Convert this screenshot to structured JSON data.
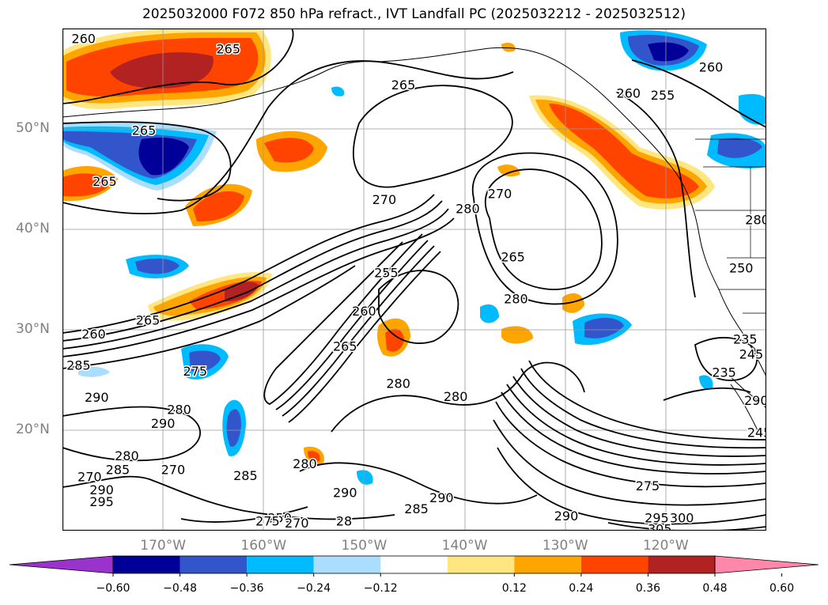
{
  "title": "2025032000 F072 850 hPa refract., IVT Landfall PC (2025032212 - 2025032512)",
  "lat_axis": [
    {
      "label": "50°N",
      "value": 50
    },
    {
      "label": "40°N",
      "value": 40
    },
    {
      "label": "30°N",
      "value": 30
    },
    {
      "label": "20°N",
      "value": 20
    }
  ],
  "lon_axis": [
    {
      "label": "170°W",
      "value": -170
    },
    {
      "label": "160°W",
      "value": -160
    },
    {
      "label": "150°W",
      "value": -150
    },
    {
      "label": "140°W",
      "value": -140
    },
    {
      "label": "130°W",
      "value": -130
    },
    {
      "label": "120°W",
      "value": -120
    }
  ],
  "map_extent": {
    "lon": [
      -180,
      -110
    ],
    "lat": [
      10,
      60
    ]
  },
  "colorbar": {
    "colors": [
      "#9933cc",
      "#000099",
      "#3355cc",
      "#00bbff",
      "#aaddff",
      "#ffffff",
      "#ffe680",
      "#ffa500",
      "#ff4400",
      "#b22222",
      "#ff88aa"
    ],
    "tick_labels": [
      "−0.60",
      "−0.48",
      "−0.36",
      "−0.24",
      "−0.12",
      "0.12",
      "0.24",
      "0.36",
      "0.48",
      "0.60"
    ]
  },
  "contour_labels": [
    {
      "text": "260",
      "lon": -177.9,
      "lat": 59.0
    },
    {
      "text": "265",
      "lon": -163.5,
      "lat": 58.0
    },
    {
      "text": "265",
      "lon": -146.1,
      "lat": 54.4
    },
    {
      "text": "265",
      "lon": -171.9,
      "lat": 49.9
    },
    {
      "text": "265",
      "lon": -175.8,
      "lat": 44.8
    },
    {
      "text": "260",
      "lon": -123.7,
      "lat": 53.6
    },
    {
      "text": "255",
      "lon": -120.3,
      "lat": 53.4
    },
    {
      "text": "260",
      "lon": -115.5,
      "lat": 56.2
    },
    {
      "text": "270",
      "lon": -148.0,
      "lat": 43.0
    },
    {
      "text": "280",
      "lon": -139.7,
      "lat": 42.1
    },
    {
      "text": "270",
      "lon": -136.5,
      "lat": 43.6
    },
    {
      "text": "265",
      "lon": -135.2,
      "lat": 37.3
    },
    {
      "text": "280",
      "lon": -134.9,
      "lat": 33.1
    },
    {
      "text": "255",
      "lon": -147.8,
      "lat": 35.7
    },
    {
      "text": "260",
      "lon": -150.0,
      "lat": 31.9
    },
    {
      "text": "265",
      "lon": -171.5,
      "lat": 31.0
    },
    {
      "text": "260",
      "lon": -176.9,
      "lat": 29.6
    },
    {
      "text": "285",
      "lon": -178.4,
      "lat": 26.5
    },
    {
      "text": "275",
      "lon": -166.8,
      "lat": 25.9
    },
    {
      "text": "265",
      "lon": -151.9,
      "lat": 28.4
    },
    {
      "text": "280",
      "lon": -146.6,
      "lat": 24.7
    },
    {
      "text": "280",
      "lon": -140.9,
      "lat": 23.4
    },
    {
      "text": "290",
      "lon": -176.6,
      "lat": 23.3
    },
    {
      "text": "290",
      "lon": -170.0,
      "lat": 20.7
    },
    {
      "text": "280",
      "lon": -168.4,
      "lat": 22.1
    },
    {
      "text": "270",
      "lon": -169.0,
      "lat": 16.1
    },
    {
      "text": "285",
      "lon": -161.8,
      "lat": 15.5
    },
    {
      "text": "280",
      "lon": -155.9,
      "lat": 16.7
    },
    {
      "text": "290",
      "lon": -151.9,
      "lat": 13.8
    },
    {
      "text": "290",
      "lon": -142.3,
      "lat": 13.3
    },
    {
      "text": "285",
      "lon": -144.8,
      "lat": 12.2
    },
    {
      "text": "290",
      "lon": -129.9,
      "lat": 11.5
    },
    {
      "text": "275",
      "lon": -121.8,
      "lat": 14.5
    },
    {
      "text": "295",
      "lon": -120.9,
      "lat": 11.3
    },
    {
      "text": "300",
      "lon": -118.4,
      "lat": 11.3
    },
    {
      "text": "305",
      "lon": -120.6,
      "lat": 10.2
    },
    {
      "text": "245",
      "lon": -111.5,
      "lat": 27.6
    },
    {
      "text": "250",
      "lon": -112.5,
      "lat": 36.2
    },
    {
      "text": "235",
      "lon": -114.2,
      "lat": 25.8
    },
    {
      "text": "235",
      "lon": -112.1,
      "lat": 29.1
    },
    {
      "text": "245",
      "lon": -110.7,
      "lat": 19.8
    },
    {
      "text": "290",
      "lon": -111.0,
      "lat": 23.0
    },
    {
      "text": "280",
      "lon": -110.9,
      "lat": 41.0
    },
    {
      "text": "295",
      "lon": -176.1,
      "lat": 12.9
    },
    {
      "text": "290",
      "lon": -176.1,
      "lat": 14.1
    },
    {
      "text": "270",
      "lon": -177.3,
      "lat": 15.4
    },
    {
      "text": "285",
      "lon": -174.5,
      "lat": 16.1
    },
    {
      "text": "280",
      "lon": -173.6,
      "lat": 17.5
    },
    {
      "text": "250",
      "lon": -158.4,
      "lat": 11.3
    },
    {
      "text": "270",
      "lon": -156.7,
      "lat": 10.8
    },
    {
      "text": "275",
      "lon": -159.6,
      "lat": 11.0
    },
    {
      "text": "28",
      "lon": -152.0,
      "lat": 11.0
    }
  ]
}
